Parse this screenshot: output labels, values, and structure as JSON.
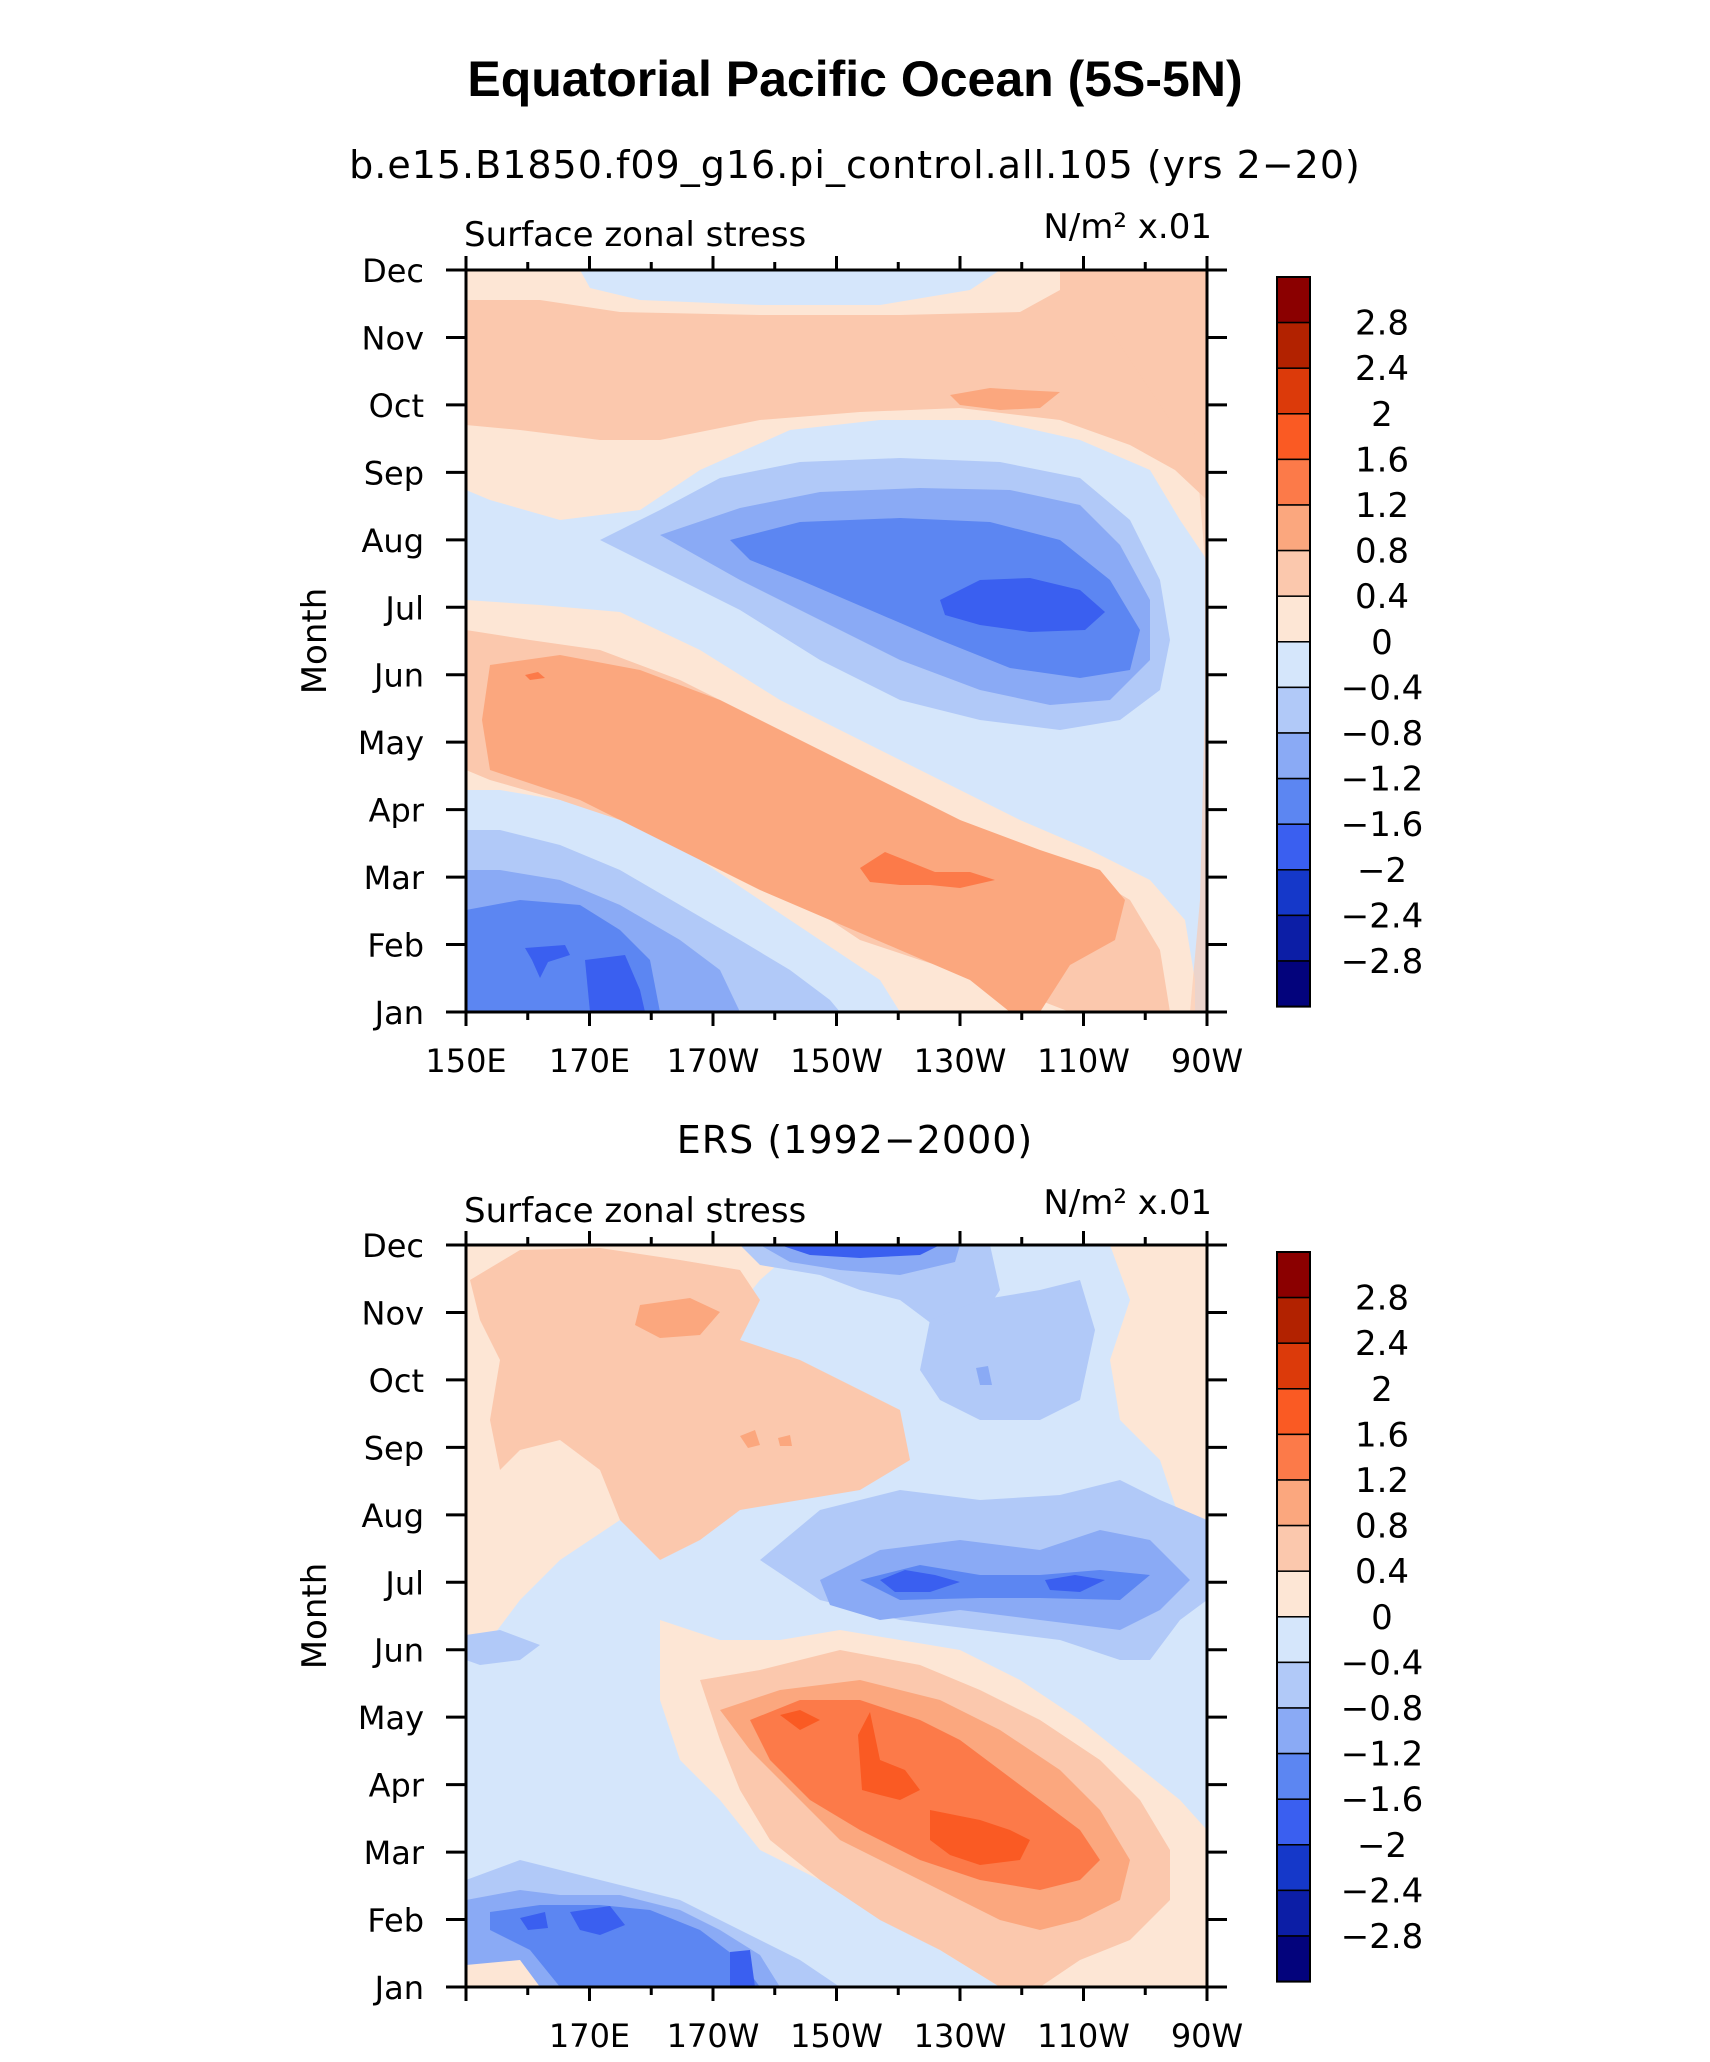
{
  "figure": {
    "title": "Equatorial Pacific Ocean (5S-5N)"
  },
  "colorbar": {
    "levels": [
      "2.8",
      "2.4",
      "2",
      "1.6",
      "1.2",
      "0.8",
      "0.4",
      "0",
      "−0.4",
      "−0.8",
      "−1.2",
      "−1.6",
      "−2",
      "−2.4",
      "−2.8"
    ],
    "colors": [
      "#8b0000",
      "#b22200",
      "#dc3a0a",
      "#fa5a23",
      "#fc7a49",
      "#fba77e",
      "#fbc8ad",
      "#fde6d5",
      "#d5e6fb",
      "#b1c9f8",
      "#8aaaf5",
      "#5c86f2",
      "#3a5ff0",
      "#1538c9",
      "#0c1ea6",
      "#03037c"
    ]
  },
  "chart_data": [
    {
      "type": "contour",
      "title": "b.e15.B1850.f09_g16.pi_control.all.105 (yrs 2−20)",
      "variable": "Surface zonal stress",
      "units": "N/m² x.01",
      "ylabel": "Month",
      "xlabel": "",
      "x_ticks": [
        "150E",
        "170E",
        "170W",
        "150W",
        "130W",
        "110W",
        "90W"
      ],
      "y_ticks": [
        "Jan",
        "Feb",
        "Mar",
        "Apr",
        "May",
        "Jun",
        "Jul",
        "Aug",
        "Sep",
        "Oct",
        "Nov",
        "Dec"
      ],
      "xlim": [
        "150E",
        "90W"
      ],
      "features": [
        {
          "region": "western Pacific, Jan-Mar",
          "min": -2.0
        },
        {
          "region": "150W-110W, Jul-Aug",
          "min": -2.4
        },
        {
          "region": "170E-110W, Mar-Jun",
          "max": 1.6
        },
        {
          "region": "130W-120W, Oct",
          "max": 1.2
        }
      ]
    },
    {
      "type": "contour",
      "title": "ERS (1992−2000)",
      "variable": "Surface zonal stress",
      "units": "N/m² x.01",
      "ylabel": "Month",
      "xlabel": "",
      "x_ticks": [
        "170E",
        "170W",
        "150W",
        "130W",
        "110W",
        "90W"
      ],
      "y_ticks": [
        "Jan",
        "Feb",
        "Mar",
        "Apr",
        "May",
        "Jun",
        "Jul",
        "Aug",
        "Sep",
        "Oct",
        "Nov",
        "Dec"
      ],
      "xlim": [
        "150E",
        "90W"
      ],
      "features": [
        {
          "region": "160E-160W, Jan-Feb",
          "min": -2.0
        },
        {
          "region": "150W-130W, Dec",
          "min": -2.0
        },
        {
          "region": "145W-90W, Jul",
          "min": -1.6
        },
        {
          "region": "160W-115W, Mar-May",
          "max": 2.0
        }
      ]
    }
  ]
}
